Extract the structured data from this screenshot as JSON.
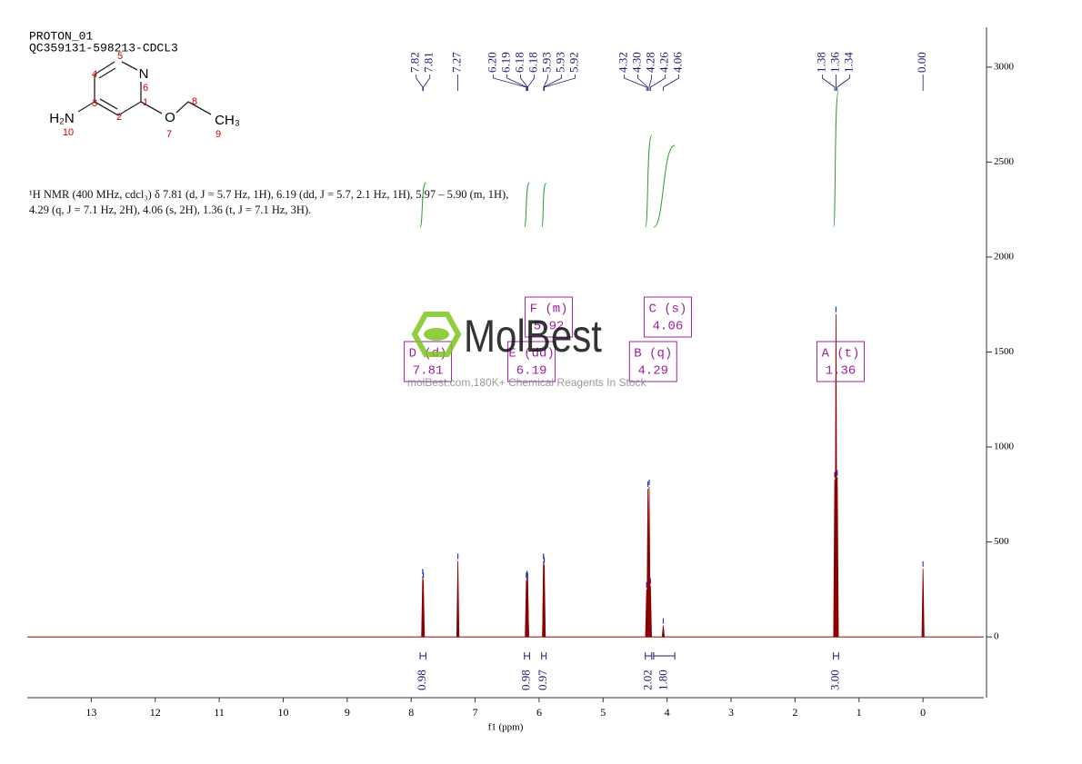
{
  "chart_data": {
    "type": "nmr",
    "title": "PROTON_01",
    "subtitle": "QC359131-598213-CDCL3",
    "description": "¹H NMR (400 MHz, cdcl₃) δ 7.81 (d, J = 5.7 Hz, 1H), 6.19 (dd, J = 5.7, 2.1 Hz, 1H), 5.97 – 5.90 (m, 1H), 4.29 (q, J = 7.1 Hz, 2H), 4.06 (s, 2H), 1.36 (t, J = 7.1 Hz, 3H).",
    "xlabel": "f1 (ppm)",
    "xlim": [
      14,
      -0.95
    ],
    "xticks": [
      13,
      12,
      11,
      10,
      9,
      8,
      7,
      6,
      5,
      4,
      3,
      2,
      1,
      0
    ],
    "ylim": [
      -320,
      3210
    ],
    "yticks": [
      0,
      500,
      1000,
      1500,
      2000,
      2500,
      3000
    ],
    "grid": false,
    "color": "#8b0000",
    "peaks": {
      "x": [
        7.82,
        7.81,
        7.27,
        {
          "value": 6.2,
          "label": "6.20"
        },
        6.19,
        6.18,
        6.18,
        5.93,
        5.93,
        5.92,
        4.32,
        {
          "value": 4.3,
          "label": "4.30"
        },
        4.28,
        4.26,
        4.06,
        1.38,
        1.36,
        1.34,
        {
          "value": 0,
          "label": "0.00"
        }
      ],
      "values": [
        320,
        300,
        400,
        300,
        310,
        300,
        290,
        400,
        400,
        380,
        250,
        780,
        790,
        270,
        60,
        830,
        1700,
        840,
        360
      ]
    },
    "integrals": {
      "ranges": [
        [
          7.86,
          7.77
        ],
        [
          6.23,
          6.15
        ],
        [
          5.96,
          5.89
        ],
        [
          4.34,
          4.24
        ],
        [
          4.21,
          3.88
        ],
        [
          1.4,
          1.32
        ]
      ],
      "values": [
        0.98,
        0.98,
        0.97,
        2.02,
        1.8,
        3
      ],
      "value_labels": [
        "0.98",
        "0.98",
        "0.97",
        "2.02",
        "1.80",
        "3.00"
      ]
    },
    "multiplets": [
      {
        "name": "D (d)",
        "shift": 7.81
      },
      {
        "name": "E (dd)",
        "shift": 6.19
      },
      {
        "name": "F (m)",
        "shift": 5.92
      },
      {
        "name": "B (q)",
        "shift": 4.29
      },
      {
        "name": "C (s)",
        "shift": 4.06
      },
      {
        "name": "A (t)",
        "shift": 1.36
      }
    ],
    "structure": {
      "atoms": [
        "N",
        "O",
        "CH₃",
        "H₂N"
      ],
      "numbers": [
        1,
        2,
        3,
        4,
        5,
        6,
        7,
        8,
        9,
        10
      ]
    },
    "watermark": {
      "brand": "MolBest",
      "tagline": "molBest.com,180K+ Chemical Reagents In Stock"
    }
  }
}
